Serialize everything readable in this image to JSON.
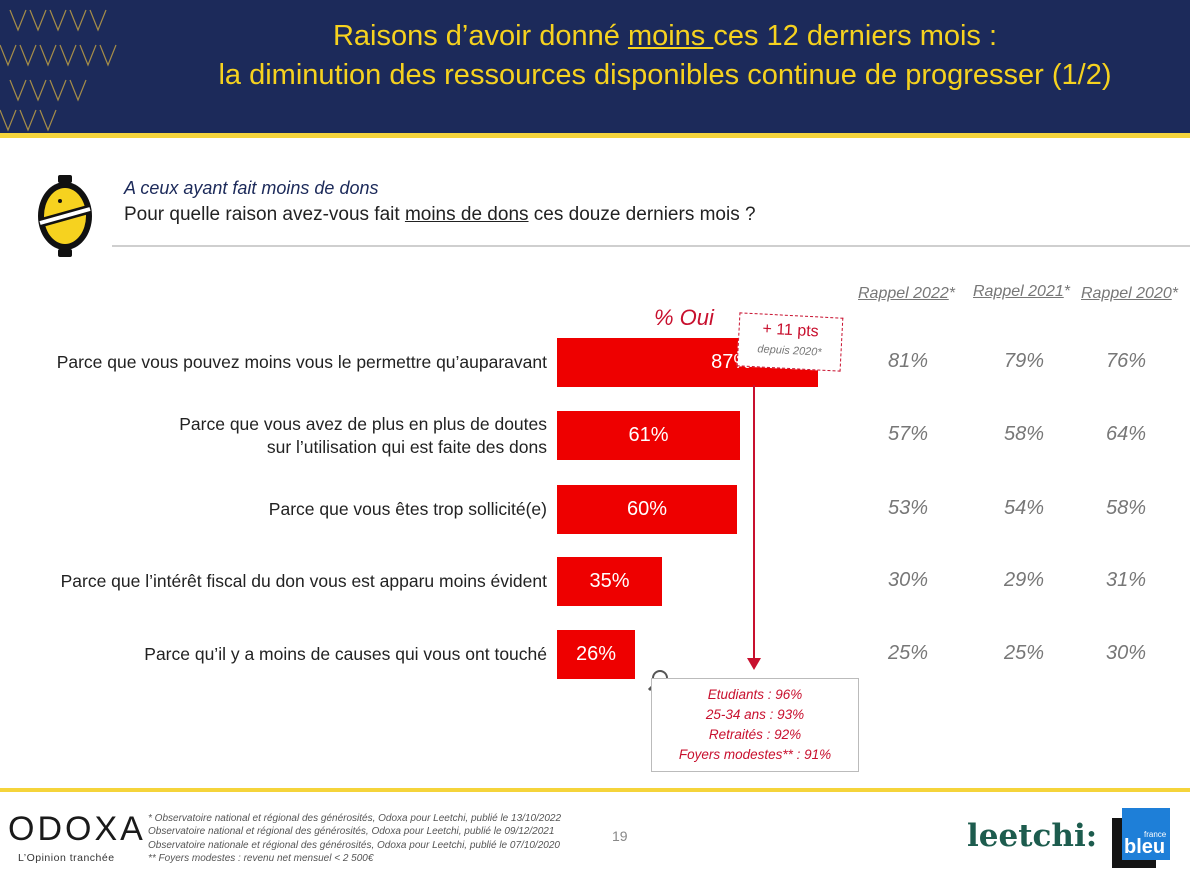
{
  "header": {
    "title_line1_pre": "Raisons d’avoir donné ",
    "title_line1_underlined": "moins ",
    "title_line1_post": "ces 12 derniers mois :",
    "title_line2": "la diminution des ressources disponibles continue de progresser (1/2)"
  },
  "question": {
    "target": "A ceux ayant fait moins de dons",
    "text_pre": "Pour quelle raison avez-vous fait ",
    "text_underlined": "moins de dons",
    "text_post": " ces douze derniers mois ?"
  },
  "rappel_headers": [
    {
      "label": "Rappel 2022",
      "mark": "*"
    },
    {
      "label": "Rappel 2021",
      "mark": "*"
    },
    {
      "label": "Rappel 2020",
      "mark": "*"
    }
  ],
  "chart_data": {
    "type": "bar",
    "orientation": "horizontal",
    "series_header": "% Oui",
    "categories": [
      [
        "Parce que vous pouvez moins vous le permettre qu’auparavant"
      ],
      [
        "Parce que vous avez de plus en plus de doutes",
        "sur l’utilisation qui est faite des dons"
      ],
      [
        "Parce que vous êtes trop sollicité(e)"
      ],
      [
        "Parce que l’intérêt fiscal du don vous est apparu moins évident"
      ],
      [
        "Parce qu’il y a moins de causes qui vous ont touché"
      ]
    ],
    "values": [
      87,
      61,
      60,
      35,
      26
    ],
    "value_labels": [
      "87%",
      "61%",
      "60%",
      "35%",
      "26%"
    ],
    "rappel": [
      [
        "81%",
        "79%",
        "76%"
      ],
      [
        "57%",
        "58%",
        "64%"
      ],
      [
        "53%",
        "54%",
        "58%"
      ],
      [
        "30%",
        "29%",
        "31%"
      ],
      [
        "25%",
        "25%",
        "30%"
      ]
    ],
    "bar_color": "#ee0000"
  },
  "annotation": {
    "change": "+ 11 pts",
    "change_sub": "depuis 2020*",
    "details": [
      "Etudiants : 96%",
      "25-34 ans : 93%",
      "Retraités : 92%",
      "Foyers modestes** : 91%"
    ]
  },
  "footer": {
    "brand": "ODOXA",
    "tagline": "L’Opinion tranchée",
    "notes": [
      "* Observatoire national et régional des générosités, Odoxa pour Leetchi, publié le 13/10/2022",
      "Observatoire national et régional des générosités, Odoxa pour Leetchi, publié le 09/12/2021",
      "Observatoire nationale et régional des générosités, Odoxa pour Leetchi, publié le 07/10/2020",
      "** Foyers modestes : revenu net mensuel < 2 500€"
    ],
    "page": "19",
    "partner1": "leetchi:",
    "partner2_small": "france",
    "partner2": "bleu"
  },
  "colors": {
    "navy": "#1c2a5a",
    "gold": "#f6d21f",
    "accent_red": "#c8102e"
  }
}
